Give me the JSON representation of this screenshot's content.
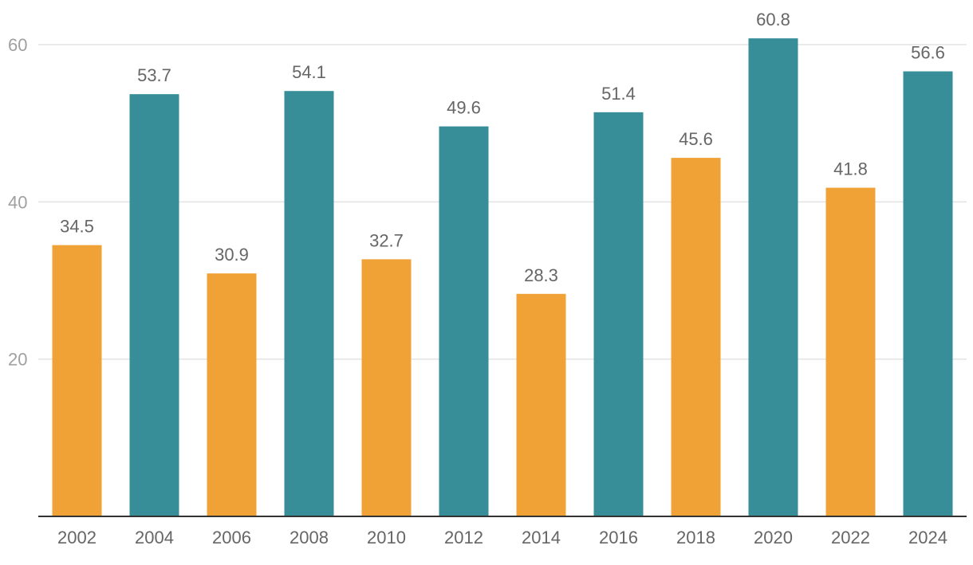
{
  "chart_data": {
    "type": "bar",
    "categories": [
      "2002",
      "2004",
      "2006",
      "2008",
      "2010",
      "2012",
      "2014",
      "2016",
      "2018",
      "2020",
      "2022",
      "2024"
    ],
    "values": [
      34.5,
      53.7,
      30.9,
      54.1,
      32.7,
      49.6,
      28.3,
      51.4,
      45.6,
      60.8,
      41.8,
      56.6
    ],
    "value_labels": [
      "34.5",
      "53.7",
      "30.9",
      "54.1",
      "32.7",
      "49.6",
      "28.3",
      "51.4",
      "45.6",
      "60.8",
      "41.8",
      "56.6"
    ],
    "bar_colors": [
      "#f0a236",
      "#378e99",
      "#f0a236",
      "#378e99",
      "#f0a236",
      "#378e99",
      "#f0a236",
      "#378e99",
      "#f0a236",
      "#378e99",
      "#f0a236",
      "#378e99"
    ],
    "title": "",
    "xlabel": "",
    "ylabel": "",
    "ylim": [
      0,
      60
    ],
    "yticks": [
      20,
      40,
      60
    ],
    "ytick_labels": [
      "20",
      "40",
      "60"
    ],
    "grid": true,
    "legend": "none"
  },
  "colors": {
    "orange": "#f0a236",
    "teal": "#378e99",
    "grid": "#e3e3e3",
    "axis": "#333333",
    "label_text": "#666666",
    "tick_text": "#a0a0a0"
  }
}
